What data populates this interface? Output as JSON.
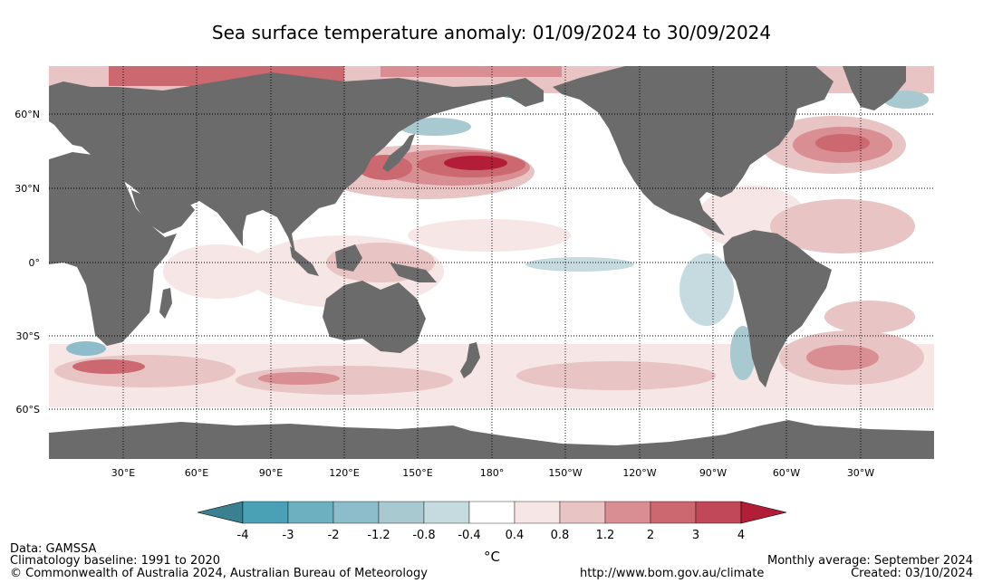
{
  "title": "Sea surface temperature anomaly: 01/09/2024 to 30/09/2024",
  "lat_labels": [
    "60°N",
    "30°N",
    "0°",
    "30°S",
    "60°S"
  ],
  "lon_labels": [
    "30°E",
    "60°E",
    "90°E",
    "120°E",
    "150°E",
    "180°",
    "150°W",
    "120°W",
    "90°W",
    "60°W",
    "30°W"
  ],
  "colorbar": {
    "ticks": [
      "-4",
      "-3",
      "-2",
      "-1.2",
      "-0.8",
      "-0.4",
      "0.4",
      "0.8",
      "1.2",
      "2",
      "3",
      "4"
    ],
    "unit": "°C",
    "colors": [
      "#3a8090",
      "#4aa0b4",
      "#6db0c0",
      "#8dbccb",
      "#a9c9d0",
      "#c6dbe0",
      "#ffffff",
      "#f6e6e6",
      "#e8c4c4",
      "#d98e94",
      "#cb6870",
      "#c04858",
      "#b21e38"
    ]
  },
  "colors": {
    "land": "#6b6b6b",
    "ocean": "#ffffff",
    "grid": "#000000"
  },
  "footer": {
    "data_source": "Data: GAMSSA",
    "baseline": "Climatology baseline: 1991 to 2020",
    "copyright": "© Commonwealth of Australia 2024, Australian Bureau of Meteorology",
    "period": "Monthly average: September 2024",
    "url": "http://www.bom.gov.au/climate",
    "created": "Created: 03/10/2024"
  }
}
